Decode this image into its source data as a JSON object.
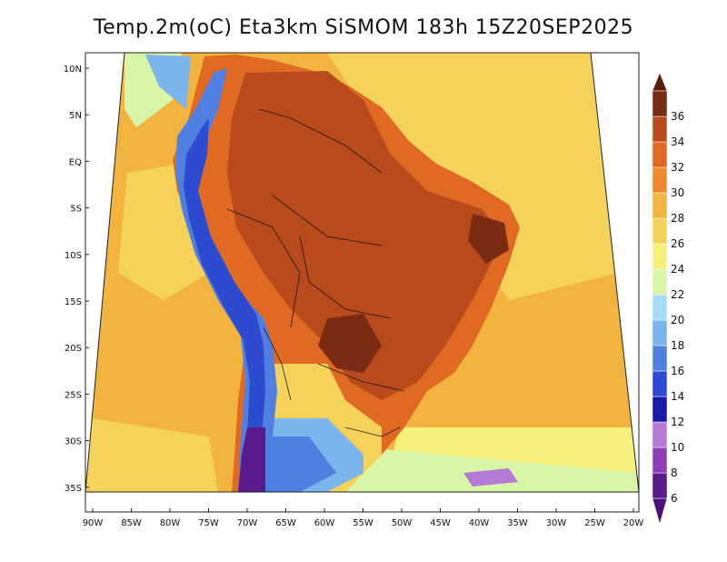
{
  "title": "Temp.2m(oC) Eta3km SiSMOM 183h 15Z20SEP2025",
  "lat_labels": [
    "10N",
    "5N",
    "EQ",
    "5S",
    "10S",
    "15S",
    "20S",
    "25S",
    "30S",
    "35S"
  ],
  "lon_labels": [
    "90W",
    "85W",
    "80W",
    "75W",
    "70W",
    "65W",
    "60W",
    "55W",
    "50W",
    "45W",
    "40W",
    "35W",
    "30W",
    "25W",
    "20W"
  ],
  "colorbar": {
    "labels": [
      "6",
      "8",
      "10",
      "12",
      "14",
      "16",
      "18",
      "20",
      "22",
      "24",
      "26",
      "28",
      "30",
      "32",
      "34",
      "36"
    ],
    "colors": [
      "#5b1a8c",
      "#8e3fb8",
      "#b57ad6",
      "#1a1aa8",
      "#2d4bd0",
      "#4f7fe0",
      "#7cb4ee",
      "#a6dcf5",
      "#d9f5a8",
      "#f6f07a",
      "#f5d35a",
      "#f2b43e",
      "#ee8a2c",
      "#e06a22",
      "#b84a1c",
      "#7a2c12"
    ],
    "min_color": "#4a0f7a",
    "max_color": "#5a1e0c"
  },
  "colors": {
    "ocean_warm": "#f5d35a",
    "ocean_mid": "#f2b43e",
    "ocean_cool": "#f6f07a",
    "land_hot": "#b84a1c",
    "land_mid": "#e06a22",
    "andes_cold": "#4f7fe0",
    "andes_coldest": "#5b1a8c"
  }
}
